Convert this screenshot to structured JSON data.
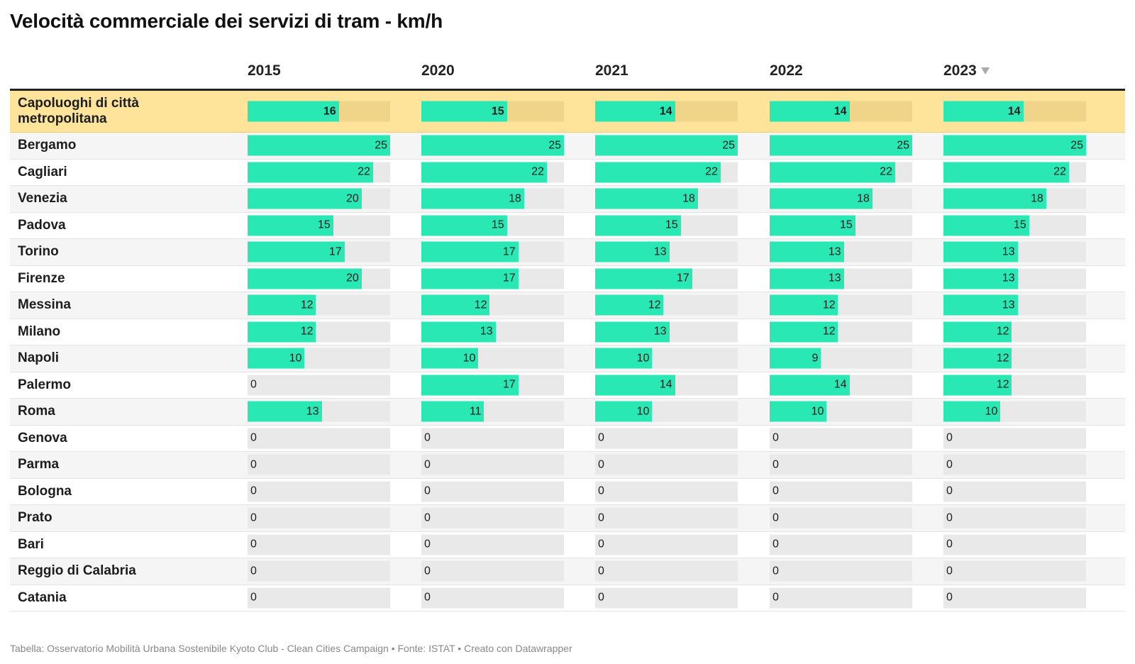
{
  "title": "Velocità commerciale dei servizi di tram - km/h",
  "footer": "Tabella: Osservatorio Mobilità Urbana Sostenibile Kyoto Club - Clean Cities Campaign • Fonte: ISTAT • Creato con Datawrapper",
  "sort_icon": "sort-descending-icon",
  "colors": {
    "bar": "#2ae8b4",
    "track": "#e9e9e9",
    "highlight_row": "#fde49a",
    "highlight_track": "#efd48a"
  },
  "chart_data": {
    "type": "table",
    "scale_max": 25,
    "columns": [
      "2015",
      "2020",
      "2021",
      "2022",
      "2023"
    ],
    "sorted_by": "2023",
    "rows": [
      {
        "name": "Capoluoghi di città metropolitana",
        "highlight": true,
        "values": [
          16,
          15,
          14,
          14,
          14
        ]
      },
      {
        "name": "Bergamo",
        "values": [
          25,
          25,
          25,
          25,
          25
        ]
      },
      {
        "name": "Cagliari",
        "values": [
          22,
          22,
          22,
          22,
          22
        ]
      },
      {
        "name": "Venezia",
        "values": [
          20,
          18,
          18,
          18,
          18
        ]
      },
      {
        "name": "Padova",
        "values": [
          15,
          15,
          15,
          15,
          15
        ]
      },
      {
        "name": "Torino",
        "values": [
          17,
          17,
          13,
          13,
          13
        ]
      },
      {
        "name": "Firenze",
        "values": [
          20,
          17,
          17,
          13,
          13
        ]
      },
      {
        "name": "Messina",
        "values": [
          12,
          12,
          12,
          12,
          13
        ]
      },
      {
        "name": "Milano",
        "values": [
          12,
          13,
          13,
          12,
          12
        ]
      },
      {
        "name": "Napoli",
        "values": [
          10,
          10,
          10,
          9,
          12
        ]
      },
      {
        "name": "Palermo",
        "values": [
          0,
          17,
          14,
          14,
          12
        ]
      },
      {
        "name": "Roma",
        "values": [
          13,
          11,
          10,
          10,
          10
        ]
      },
      {
        "name": "Genova",
        "values": [
          0,
          0,
          0,
          0,
          0
        ]
      },
      {
        "name": "Parma",
        "values": [
          0,
          0,
          0,
          0,
          0
        ]
      },
      {
        "name": "Bologna",
        "values": [
          0,
          0,
          0,
          0,
          0
        ]
      },
      {
        "name": "Prato",
        "values": [
          0,
          0,
          0,
          0,
          0
        ]
      },
      {
        "name": "Bari",
        "values": [
          0,
          0,
          0,
          0,
          0
        ]
      },
      {
        "name": "Reggio di Calabria",
        "values": [
          0,
          0,
          0,
          0,
          0
        ]
      },
      {
        "name": "Catania",
        "values": [
          0,
          0,
          0,
          0,
          0
        ]
      }
    ]
  }
}
